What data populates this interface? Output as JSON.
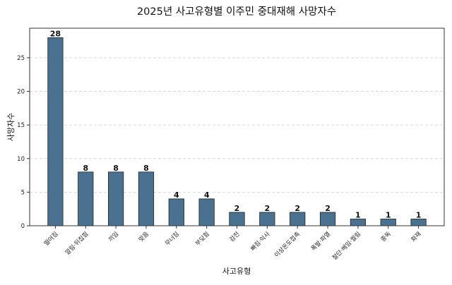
{
  "chart_data": {
    "type": "bar",
    "title": "2025년 사고유형별 이주민 중대재해 사망자수",
    "xlabel": "사고유형",
    "ylabel": "사망자수",
    "categories": [
      "떨어짐",
      "깔림·뒤집힘",
      "끼임",
      "맞음",
      "무너짐",
      "부딪힘",
      "감전",
      "빠짐·익사",
      "이상온도접촉",
      "폭발·파열",
      "절단·베임·찔림",
      "중독",
      "화재"
    ],
    "values": [
      28,
      8,
      8,
      8,
      4,
      4,
      2,
      2,
      2,
      2,
      1,
      1,
      1
    ],
    "ylim": [
      0,
      29.4
    ],
    "yticks": [
      0,
      5,
      10,
      15,
      20,
      25
    ],
    "grid": "y-dashed",
    "bar_color": "#4a7190",
    "edge_color": "#222222"
  }
}
